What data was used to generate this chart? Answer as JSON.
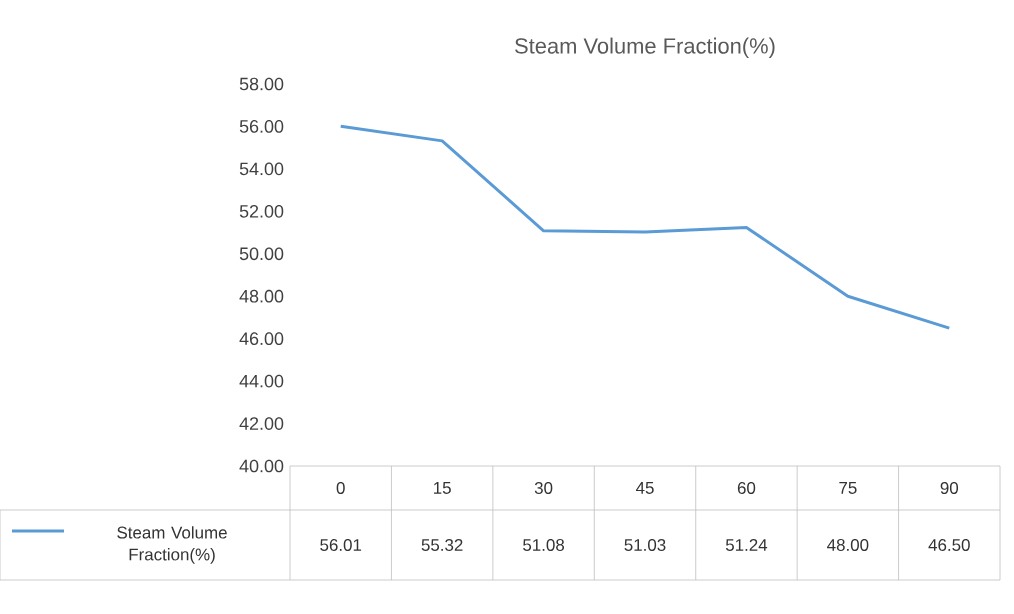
{
  "chart_data": {
    "type": "line",
    "title": "Steam Volume Fraction(%)",
    "categories": [
      "0",
      "15",
      "30",
      "45",
      "60",
      "75",
      "90"
    ],
    "series": [
      {
        "name": "Steam Volume Fraction(%)",
        "color": "#5b9bd5",
        "values": [
          56.01,
          55.32,
          51.08,
          51.03,
          51.24,
          48.0,
          46.5
        ],
        "value_labels": [
          "56.01",
          "55.32",
          "51.08",
          "51.03",
          "51.24",
          "48.00",
          "46.50"
        ]
      }
    ],
    "ylim": [
      40,
      58
    ],
    "yticks": [
      {
        "value": 40,
        "label": "40.00"
      },
      {
        "value": 42,
        "label": "42.00"
      },
      {
        "value": 44,
        "label": "44.00"
      },
      {
        "value": 46,
        "label": "46.00"
      },
      {
        "value": 48,
        "label": "48.00"
      },
      {
        "value": 50,
        "label": "50.00"
      },
      {
        "value": 52,
        "label": "52.00"
      },
      {
        "value": 54,
        "label": "54.00"
      },
      {
        "value": 56,
        "label": "56.00"
      },
      {
        "value": 58,
        "label": "58.00"
      }
    ],
    "legend": "bottom left",
    "marker": "none",
    "line_style": "solid"
  }
}
